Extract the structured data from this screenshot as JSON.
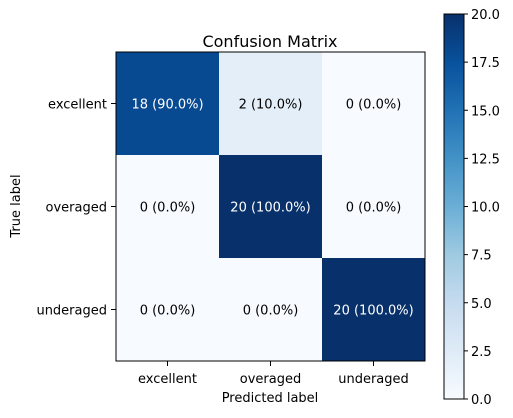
{
  "chart_data": {
    "type": "heatmap",
    "title": "Confusion Matrix",
    "xlabel": "Predicted label",
    "ylabel": "True label",
    "x_categories": [
      "excellent",
      "overaged",
      "underaged"
    ],
    "y_categories": [
      "excellent",
      "overaged",
      "underaged"
    ],
    "values": [
      [
        18,
        2,
        0
      ],
      [
        0,
        20,
        0
      ],
      [
        0,
        0,
        20
      ]
    ],
    "cell_labels": [
      [
        "18 (90.0%)",
        "2 (10.0%)",
        "0 (0.0%)"
      ],
      [
        "0 (0.0%)",
        "20 (100.0%)",
        "0 (0.0%)"
      ],
      [
        "0 (0.0%)",
        "0 (0.0%)",
        "20 (100.0%)"
      ]
    ],
    "colormap": "Blues",
    "colormap_stops": [
      "#f7fbff",
      "#deebf7",
      "#c6dbef",
      "#9ecae1",
      "#6baed6",
      "#4292c6",
      "#2171b5",
      "#08519c",
      "#08306b"
    ],
    "colorbar": {
      "range": [
        0,
        20
      ],
      "ticks": [
        "0.0",
        "2.5",
        "5.0",
        "7.5",
        "10.0",
        "12.5",
        "15.0",
        "17.5",
        "20.0"
      ]
    },
    "text_colors": {
      "dark": "#000000",
      "light": "#ffffff"
    }
  }
}
